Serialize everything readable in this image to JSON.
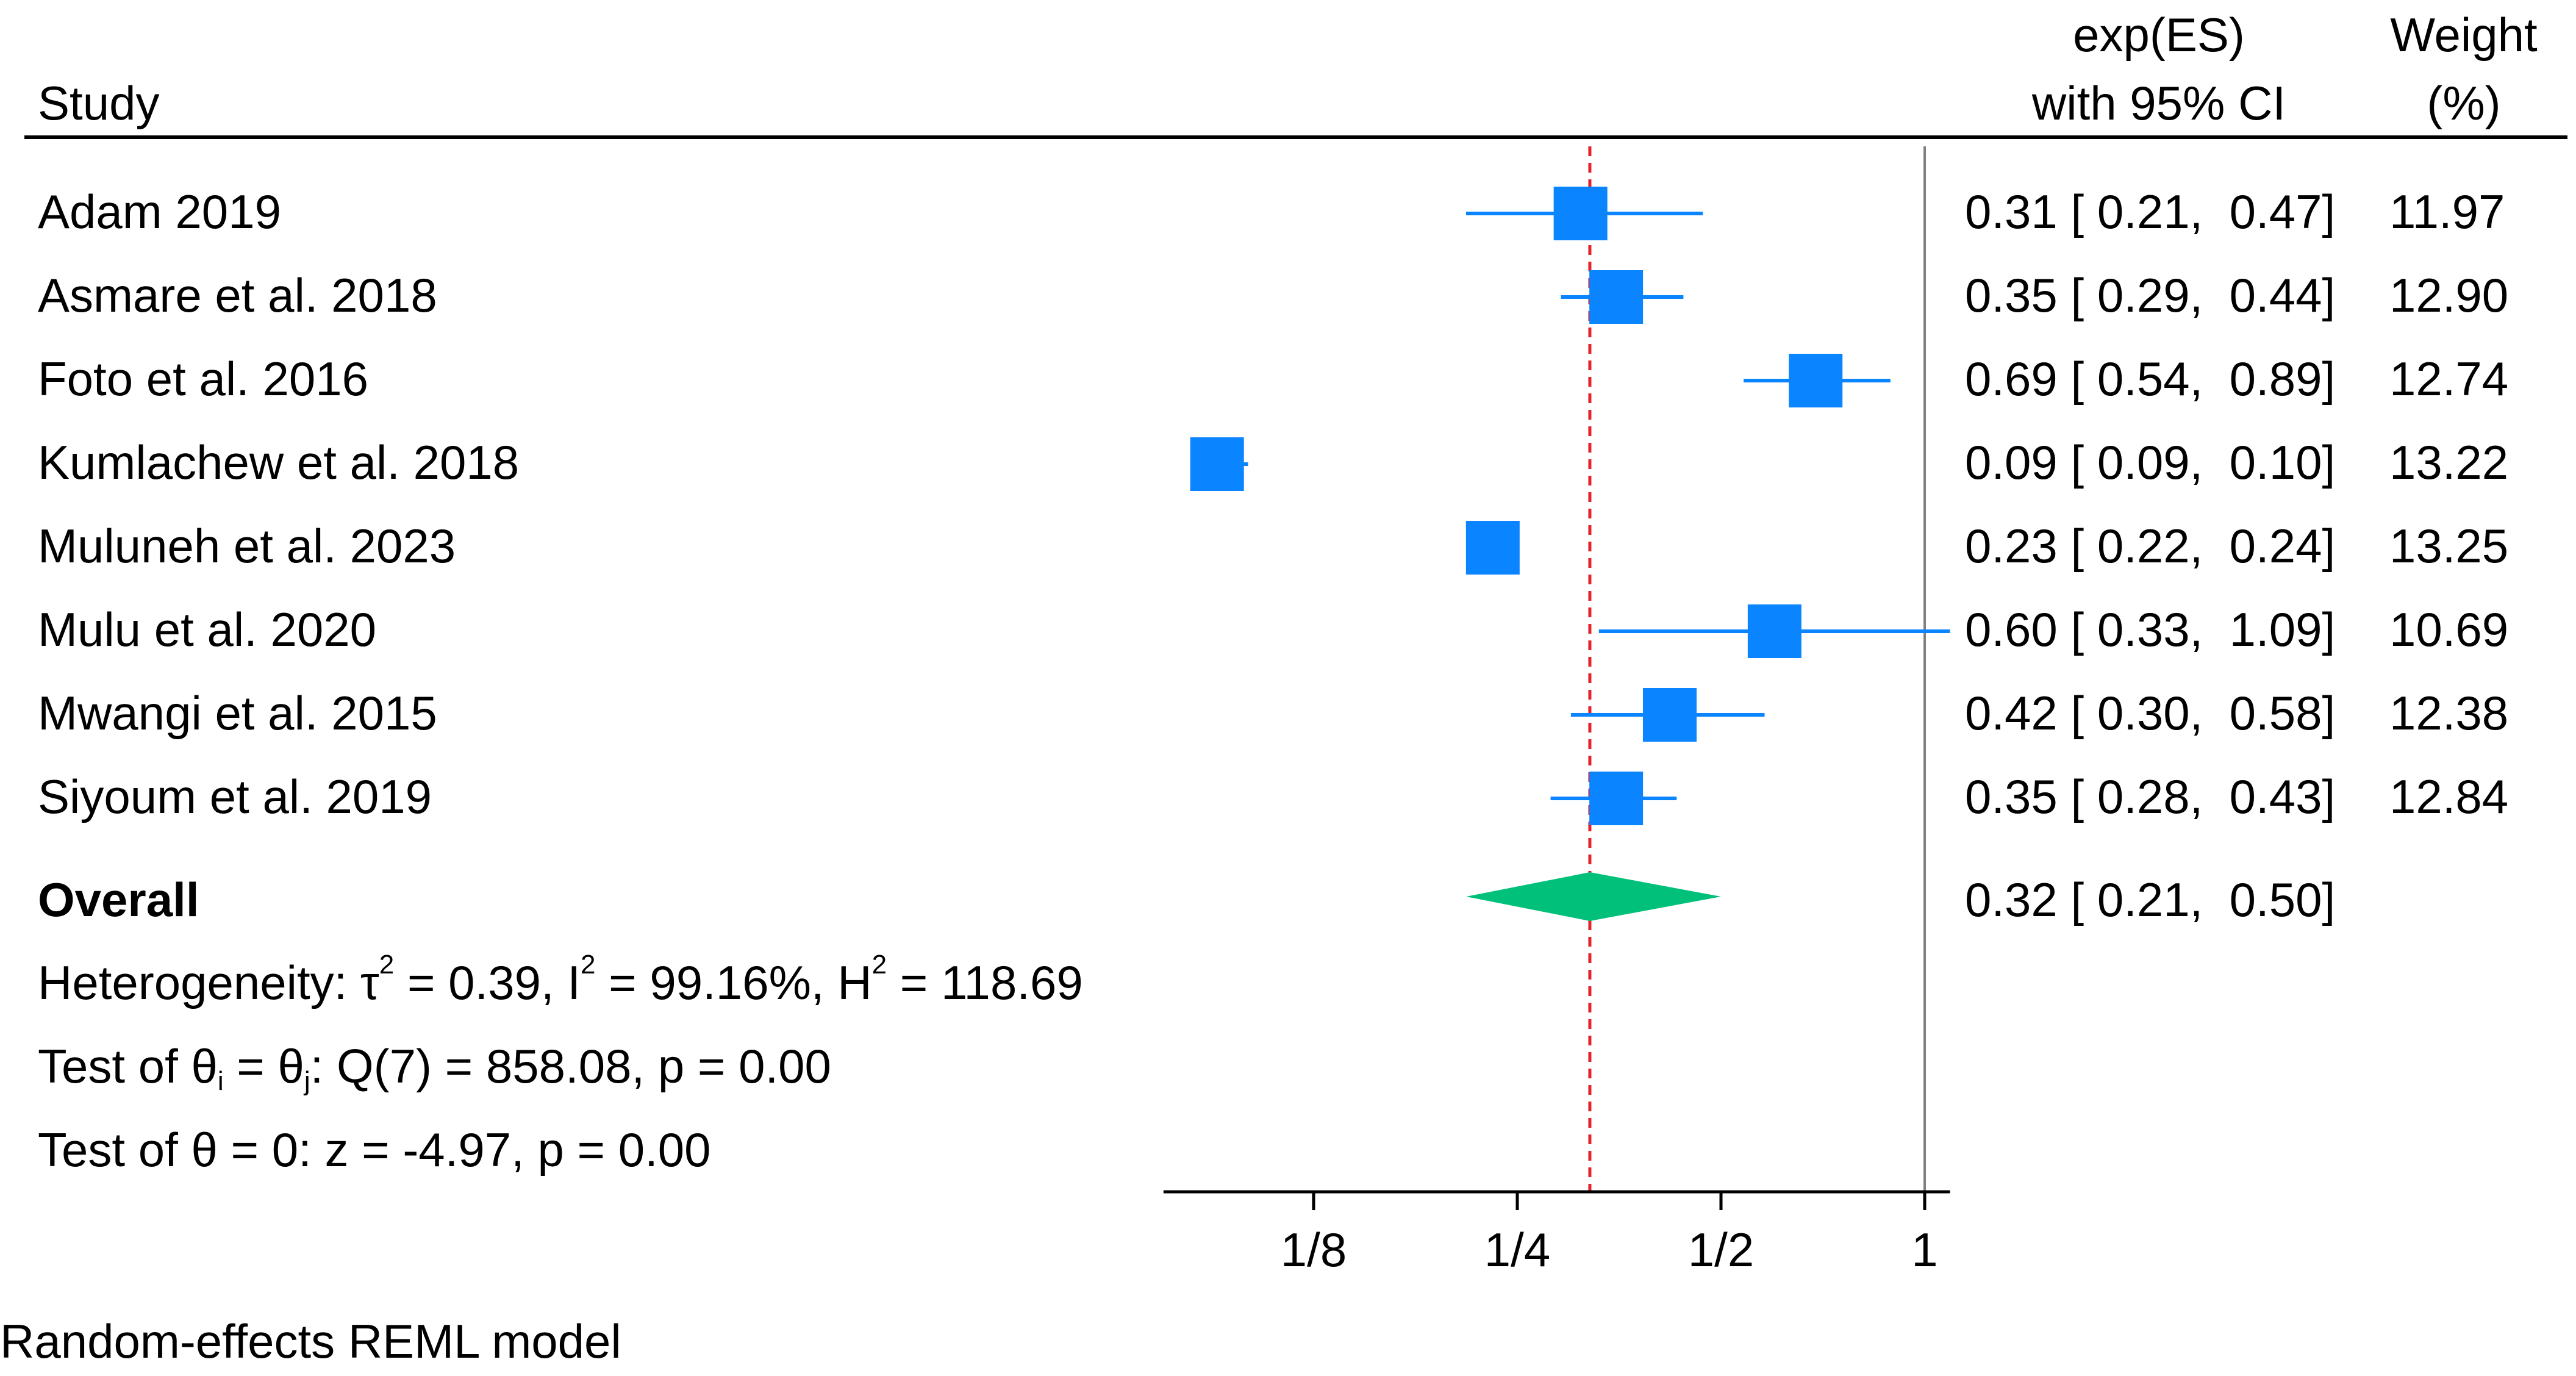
{
  "chart_data": {
    "type": "forest",
    "header": {
      "study_label": "Study",
      "es_label_line1": "exp(ES)",
      "es_label_line2": "with 95% CI",
      "weight_label_line1": "Weight",
      "weight_label_line2": "(%)"
    },
    "studies": [
      {
        "name": "Adam 2019",
        "es": 0.31,
        "lo": 0.21,
        "hi": 0.47,
        "weight": 11.97,
        "ci_text": "0.31 [ 0.21,  0.47]",
        "weight_text": "11.97"
      },
      {
        "name": "Asmare et al. 2018",
        "es": 0.35,
        "lo": 0.29,
        "hi": 0.44,
        "weight": 12.9,
        "ci_text": "0.35 [ 0.29,  0.44]",
        "weight_text": "12.90"
      },
      {
        "name": "Foto et al. 2016",
        "es": 0.69,
        "lo": 0.54,
        "hi": 0.89,
        "weight": 12.74,
        "ci_text": "0.69 [ 0.54,  0.89]",
        "weight_text": "12.74"
      },
      {
        "name": "Kumlachew et al. 2018",
        "es": 0.09,
        "lo": 0.09,
        "hi": 0.1,
        "weight": 13.22,
        "ci_text": "0.09 [ 0.09,  0.10]",
        "weight_text": "13.22"
      },
      {
        "name": "Muluneh et al. 2023",
        "es": 0.23,
        "lo": 0.22,
        "hi": 0.24,
        "weight": 13.25,
        "ci_text": "0.23 [ 0.22,  0.24]",
        "weight_text": "13.25"
      },
      {
        "name": "Mulu et al. 2020",
        "es": 0.6,
        "lo": 0.33,
        "hi": 1.09,
        "weight": 10.69,
        "ci_text": "0.60 [ 0.33,  1.09]",
        "weight_text": "10.69"
      },
      {
        "name": "Mwangi et al. 2015",
        "es": 0.42,
        "lo": 0.3,
        "hi": 0.58,
        "weight": 12.38,
        "ci_text": "0.42 [ 0.30,  0.58]",
        "weight_text": "12.38"
      },
      {
        "name": "Siyoum et al. 2019",
        "es": 0.35,
        "lo": 0.28,
        "hi": 0.43,
        "weight": 12.84,
        "ci_text": "0.35 [ 0.28,  0.43]",
        "weight_text": "12.84"
      }
    ],
    "overall": {
      "label": "Overall",
      "es": 0.32,
      "lo": 0.21,
      "hi": 0.5,
      "ci_text": "0.32 [ 0.21,  0.50]"
    },
    "stats": {
      "heterogeneity": {
        "prefix": "Heterogeneity: τ",
        "sup1": "2",
        "mid1": " = 0.39, I",
        "sup2": "2",
        "mid2": " = 99.16%, H",
        "sup3": "2",
        "end": " = 118.69"
      },
      "test_equal": {
        "part1": "Test of θ",
        "sub1": "i",
        "part2": " = θ",
        "sub2": "j",
        "part3": ": Q(7) = 858.08, p = 0.00"
      },
      "test_zero": "Test of θ = 0: z = -4.97, p = 0.00"
    },
    "x_axis": {
      "scale": "log",
      "ticks": [
        {
          "value": 0.125,
          "label": "1/8"
        },
        {
          "value": 0.25,
          "label": "1/4"
        },
        {
          "value": 0.5,
          "label": "1/2"
        },
        {
          "value": 1,
          "label": "1"
        }
      ],
      "domain": [
        0.075,
        1.09
      ]
    },
    "null_line": 1,
    "footnote": "Random-effects REML model",
    "colors": {
      "square": "#0a84ff",
      "ci_line": "#0a84ff",
      "diamond": "#00c07a",
      "overall_line": "#e8202a",
      "null_line": "#808080",
      "axis": "#000000"
    }
  }
}
